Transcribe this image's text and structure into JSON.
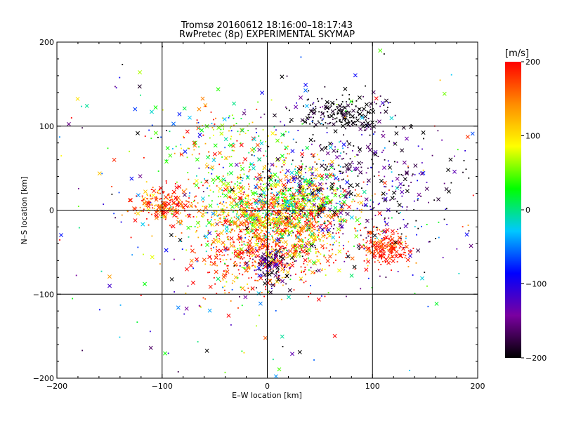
{
  "chart_data": {
    "type": "scatter",
    "title": "Tromsø 20160612 18:16:00–18:17:43",
    "subtitle": "RwPretec (8p) EXPERIMENTAL SKYMAP",
    "xlabel": "E–W location [km]",
    "ylabel": "N–S location [km]",
    "xlim": [
      -200,
      200
    ],
    "ylim": [
      -200,
      200
    ],
    "x_ticks": [
      -200,
      -100,
      0,
      100,
      200
    ],
    "y_ticks": [
      -200,
      -100,
      0,
      100,
      200
    ],
    "x_tick_labels": [
      "−200",
      "−100",
      "0",
      "100",
      "200"
    ],
    "y_tick_labels": [
      "−200",
      "−100",
      "0",
      "100",
      "200"
    ],
    "grid": true,
    "grid_lines": [
      -100,
      0,
      100
    ],
    "colorbar": {
      "label": "[m/s]",
      "min": -200,
      "max": 200,
      "ticks": [
        200,
        100,
        0,
        -100,
        -200
      ],
      "tick_labels": [
        "200",
        "100",
        "0",
        "−100",
        "−200"
      ],
      "colors": [
        "#000000",
        "#7a00a0",
        "#0000ff",
        "#00c8ff",
        "#00ff00",
        "#ffff00",
        "#ff8c00",
        "#ff0000"
      ]
    },
    "clusters": [
      {
        "cx": 10,
        "cy": -20,
        "sx": 35,
        "sy": 30,
        "n": 900,
        "v": 160,
        "vs": 60
      },
      {
        "cx": -5,
        "cy": 5,
        "sx": 40,
        "sy": 25,
        "n": 500,
        "v": 80,
        "vs": 70
      },
      {
        "cx": 30,
        "cy": 10,
        "sx": 25,
        "sy": 20,
        "n": 300,
        "v": 40,
        "vs": 80
      },
      {
        "cx": 60,
        "cy": 40,
        "sx": 40,
        "sy": 50,
        "n": 350,
        "v": -180,
        "vs": 40
      },
      {
        "cx": 70,
        "cy": 115,
        "sx": 20,
        "sy": 10,
        "n": 180,
        "v": -200,
        "vs": 15
      },
      {
        "cx": 110,
        "cy": -45,
        "sx": 12,
        "sy": 10,
        "n": 220,
        "v": 190,
        "vs": 25
      },
      {
        "cx": -100,
        "cy": 5,
        "sx": 15,
        "sy": 10,
        "n": 200,
        "v": 180,
        "vs": 40
      },
      {
        "cx": -20,
        "cy": -60,
        "sx": 25,
        "sy": 25,
        "n": 200,
        "v": 170,
        "vs": 60
      },
      {
        "cx": 5,
        "cy": -65,
        "sx": 10,
        "sy": 12,
        "n": 120,
        "v": -170,
        "vs": 40
      },
      {
        "cx": -40,
        "cy": 80,
        "sx": 30,
        "sy": 25,
        "n": 150,
        "v": 80,
        "vs": 90
      },
      {
        "cx": 0,
        "cy": 0,
        "sx": 120,
        "sy": 100,
        "n": 400,
        "v": 0,
        "vs": 130
      },
      {
        "cx": 120,
        "cy": 20,
        "sx": 40,
        "sy": 40,
        "n": 150,
        "v": -160,
        "vs": 50
      }
    ],
    "marker_cross_fraction": 0.3
  }
}
